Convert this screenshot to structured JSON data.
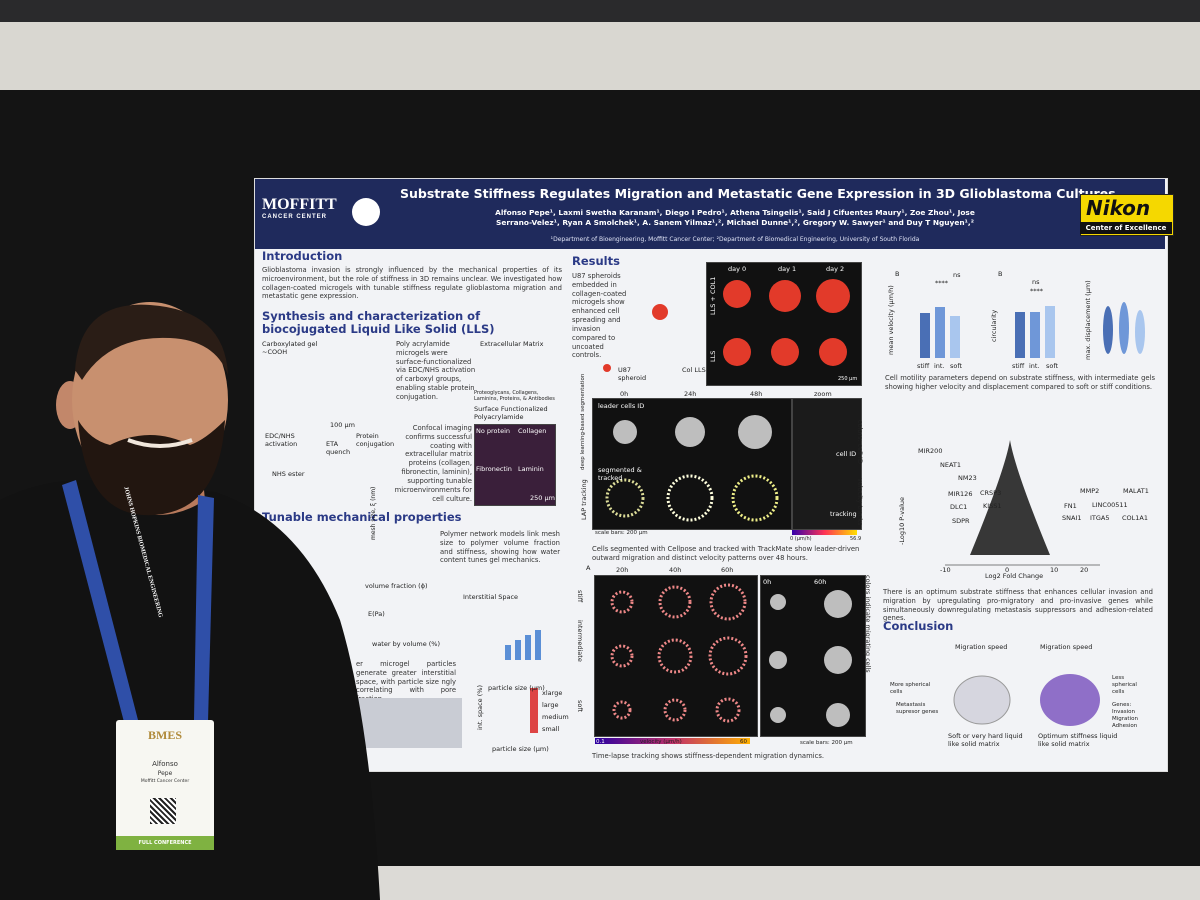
{
  "poster": {
    "logo_left": "MOFFITT",
    "logo_left_sub": "CANCER CENTER",
    "logo_right": "Nikon",
    "logo_right_sub": "Center of Excellence",
    "title": "Substrate Stiffness Regulates Migration and Metastatic Gene Expression in 3D Glioblastoma Cultures",
    "authors": "Alfonso Pepe¹, Laxmi Swetha Karanam¹, Diego I Pedro¹, Athena Tsingelis¹, Said J Cifuentes Maury¹, Zoe Zhou¹, Jose Serrano-Velez¹, Ryan A Smolchek¹, A. Sanem Yilmaz¹,², Michael Dunne¹,², Gregory W. Sawyer¹ and Duy T Nguyen¹,²",
    "affiliations": "¹Department of Bioengineering, Moffitt Cancer Center; ²Department of Biomedical Engineering, University of South Florida",
    "introduction": {
      "heading": "Introduction",
      "text": "Glioblastoma invasion is strongly influenced by the mechanical properties of its microenvironment, but the role of stiffness in 3D remains unclear. We investigated how collagen-coated microgels with tunable stiffness regulate glioblastoma migration and metastatic gene expression."
    },
    "synthesis": {
      "heading": "Synthesis and characterization of biocojugated Liquid Like Solid (LLS)",
      "text_1": "Poly acrylamide microgels were surface-functionalized via EDC/NHS activation of carboxyl groups, enabling stable protein conjugation.",
      "text_2": "Confocal imaging confirms successful coating with extracellular matrix proteins (collagen, fibronectin, laminin), supporting tunable microenvironments for cell culture.",
      "labels": [
        "Carboxylated gel ~COOH",
        "EDC/NHS activation",
        "ETA quench",
        "Protein conjugation",
        "NHS ester",
        "100 µm",
        "Extracellular Matrix",
        "Proteoglycans, Collagens, Laminins, Proteins, & Antibodies",
        "Surface Functionalized Polyacrylamide",
        "No protein",
        "Collagen",
        "Fibronectin",
        "Laminin",
        "250 µm"
      ]
    },
    "mechanical": {
      "heading": "Tunable mechanical properties",
      "text_1": "Polymer network models link mesh size to polymer volume fraction and stiffness, showing how water content tunes gel mechanics.",
      "text_2": "er microgel particles generate greater interstitial space, with particle size ngly correlating with pore fraction.",
      "labels": [
        "mesh size, ξ (nm)",
        "volume fraction (ϕ)",
        "E(Pa)",
        "water by volume (%)",
        "Interstitial Space",
        "particle size (µm)",
        "int. space (%)",
        "xlarge",
        "large",
        "medium",
        "small",
        "particle size (µm)"
      ]
    },
    "results": {
      "heading": "Results",
      "text": "U87 spheroids embedded in collagen-coated microgels show enhanced cell spreading and invasion compared to uncoated controls.",
      "caption_1": "Cells segmented with Cellpose and tracked with TrackMate show leader-driven outward migration and distinct velocity patterns over 48 hours.",
      "caption_2": "Time-lapse tracking shows stiffness-dependent migration dynamics.",
      "labels": [
        "U87 spheroid",
        "Col LLS",
        "day 0",
        "day 1",
        "day 2",
        "LLS + COL1",
        "LLS",
        "250 µm",
        "0h",
        "24h",
        "48h",
        "zoom",
        "leader cells ID",
        "deep learning-based segmentation",
        "segmented & tracked",
        "LAP tracking",
        "cell ID",
        "tracking",
        "colors: cell ID",
        "velocity tracks",
        "scale bars: 200 µm",
        "0 (µm/h)",
        "56.9",
        "A",
        "20h",
        "40h",
        "60h",
        "0h",
        "60h",
        "stiff",
        "intermediate",
        "soft",
        "0.1",
        "velocity (µm/h)",
        "60",
        "colors indicate migrating cells",
        "scale bars: 200 µm"
      ]
    },
    "motility": {
      "caption": "Cell motility parameters depend on substrate stiffness, with intermediate gels showing higher velocity and displacement compared to soft or stiff conditions.",
      "labels": [
        "B",
        "B",
        "mean velocity (µm/h)",
        "circularity",
        "max. displacement (µm)",
        "stiff",
        "int.",
        "soft",
        "stiff",
        "int.",
        "soft",
        "ns",
        "****",
        "ns",
        "****"
      ]
    },
    "expression": {
      "caption": "There is an optimum substrate stiffness that enhances cellular invasion and migration by upregulating pro-migratory and pro-invasive genes while simultaneously downregulating metastasis suppressors and adhesion-related genes.",
      "labels": [
        "MIR200",
        "NEAT1",
        "NM23",
        "MIR126",
        "CRSP3",
        "DLC1",
        "SDPR",
        "KISS1",
        "FN1",
        "MMP2",
        "MALAT1",
        "LINC00511",
        "SNAI1",
        "ITGA5",
        "COL1A1",
        "-Log10 P-value",
        "Log2 Fold Change",
        "-10",
        "0",
        "10",
        "20"
      ]
    },
    "conclusion": {
      "heading": "Conclusion",
      "labels": [
        "Migration speed",
        "Migration speed",
        "More spherical cells",
        "Metastasis supresor genes",
        "Soft or very hard liquid like solid matrix",
        "Optimum stiffness liquid like solid matrix",
        "Less spherical cells",
        "Genes: Invasion Migration Adhesion"
      ]
    }
  },
  "lanyard": "JOHNS HOPKINS BIOMEDICAL ENGINEERING",
  "badge": {
    "org": "BMES",
    "first_name": "Alfonso",
    "last_name": "Pepe",
    "affiliation": "Moffitt Cancer Center",
    "type": "FULL CONFERENCE"
  }
}
